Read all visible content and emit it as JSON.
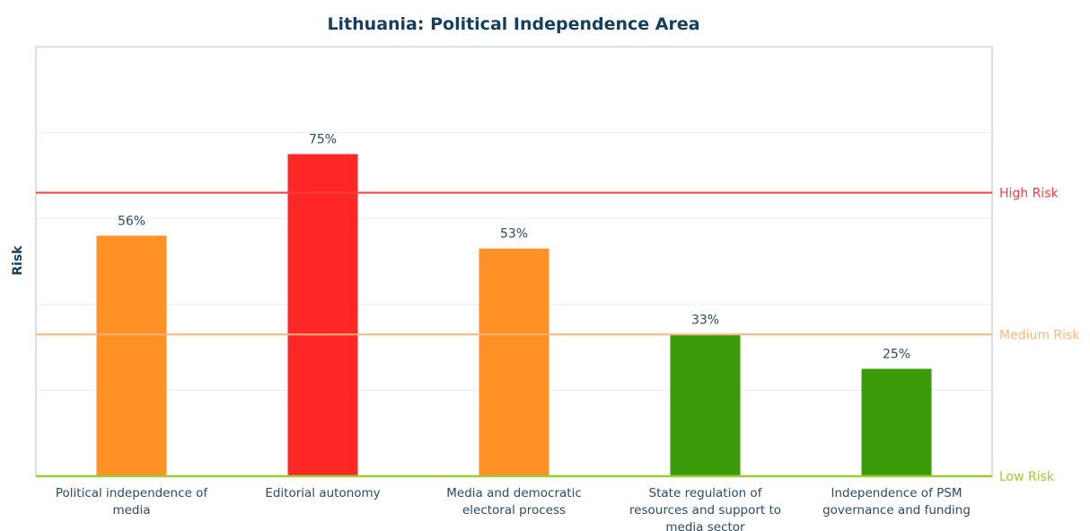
{
  "chart_data": {
    "type": "bar",
    "title": "Lithuania: Political Independence Area",
    "ylabel": "Risk",
    "xlabel": "",
    "categories": [
      [
        "Political independence of",
        "media"
      ],
      [
        "Editorial autonomy"
      ],
      [
        "Media and democratic",
        "electoral process"
      ],
      [
        "State regulation of",
        "resources and support to",
        "media sector"
      ],
      [
        "Independence of PSM",
        "governance and funding"
      ]
    ],
    "values": [
      56,
      75,
      53,
      33,
      25
    ],
    "value_labels": [
      "56%",
      "75%",
      "53%",
      "33%",
      "25%"
    ],
    "bar_colors": [
      "#ff9126",
      "#ff2626",
      "#ff9126",
      "#3a9a0a",
      "#3a9a0a"
    ],
    "ylim": [
      0,
      100
    ],
    "grid": true,
    "thresholds": [
      {
        "label": "High Risk",
        "value": 66,
        "color": "#ff3b3b"
      },
      {
        "label": "Medium Risk",
        "value": 33,
        "color": "#ffb47a"
      },
      {
        "label": "Low Risk",
        "value": 0,
        "color": "#9acd32"
      }
    ],
    "colors": {
      "title": "#14405f",
      "axis_text": "#2a4a66",
      "grid": "#e6ebf0",
      "frame": "#c9d6e0"
    }
  }
}
